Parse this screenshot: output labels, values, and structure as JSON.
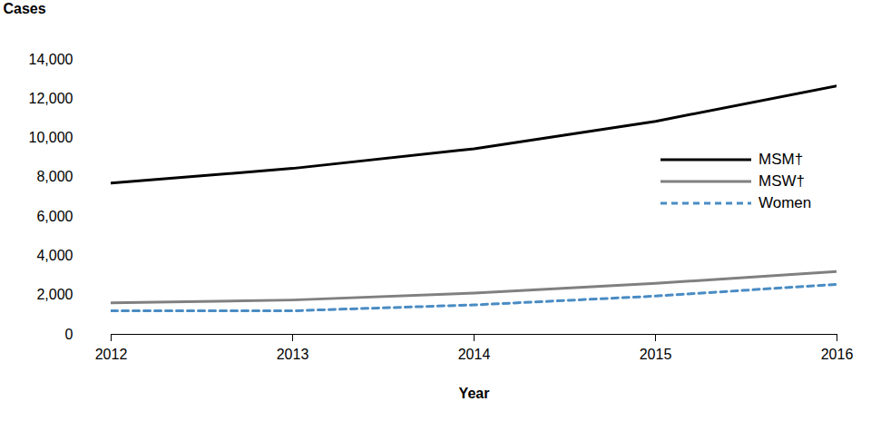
{
  "chart_data": {
    "type": "line",
    "xlabel": "Year",
    "ylabel": "Cases",
    "x": [
      2012,
      2013,
      2014,
      2015,
      2016
    ],
    "series": [
      {
        "name": "MSM†",
        "color": "#000000",
        "line_style": "solid",
        "values": [
          7700,
          8450,
          9450,
          10850,
          12650
        ]
      },
      {
        "name": "MSW†",
        "color": "#808080",
        "line_style": "solid",
        "values": [
          1600,
          1750,
          2100,
          2600,
          3200
        ]
      },
      {
        "name": "Women",
        "color": "#4a8cc4",
        "line_style": "dashed",
        "values": [
          1200,
          1200,
          1500,
          1950,
          2550
        ]
      }
    ],
    "xlim": [
      2012,
      2016
    ],
    "xticks": [
      2012,
      2013,
      2014,
      2015,
      2016
    ],
    "ylim": [
      0,
      14000
    ],
    "yticks": [
      0,
      {
        "value": 2000,
        "label": "2,000"
      },
      {
        "value": 4000,
        "label": "4,000"
      },
      {
        "value": 6000,
        "label": "6,000"
      },
      {
        "value": 8000,
        "label": "8,000"
      },
      {
        "value": 10000,
        "label": "10,000"
      },
      {
        "value": 12000,
        "label": "12,000"
      },
      {
        "value": 14000,
        "label": "14,000"
      }
    ],
    "grid": false,
    "legend": "right"
  }
}
